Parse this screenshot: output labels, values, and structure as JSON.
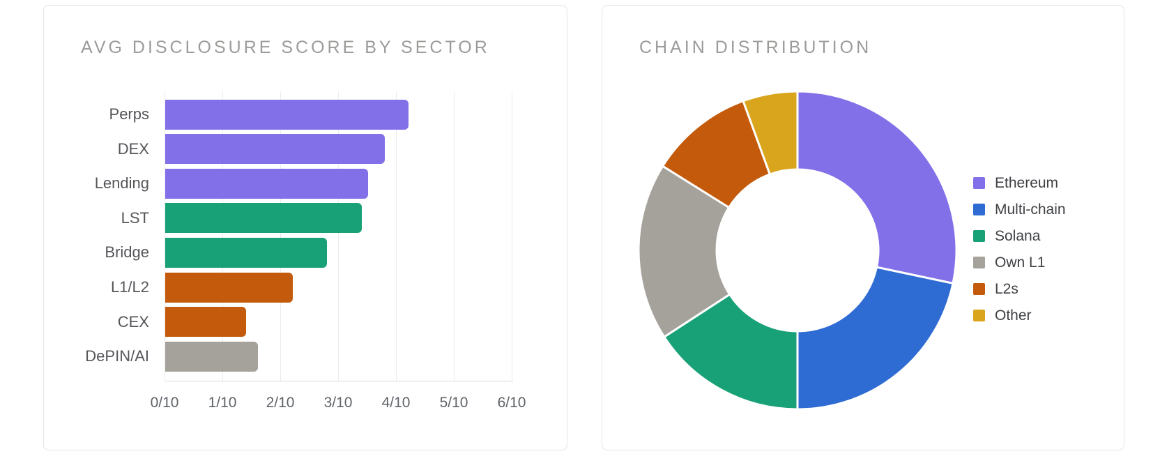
{
  "cards": [
    {
      "title": "AVG DISCLOSURE SCORE BY SECTOR"
    },
    {
      "title": "CHAIN DISTRIBUTION"
    }
  ],
  "colors": {
    "purple": "#8170e8",
    "blue": "#2e6bd3",
    "green": "#18a176",
    "gray": "#a5a19b",
    "orange": "#c45a0b",
    "gold": "#d9a51d",
    "card_border": "#e5e5e8",
    "grid": "#ececef",
    "axis": "#d9d9dc",
    "title_text": "#9b9b99",
    "category_text": "#55565a",
    "tick_text": "#5f6368",
    "legend_text": "#3e4044"
  },
  "chart_data": [
    {
      "type": "bar",
      "orientation": "horizontal",
      "title": "AVG DISCLOSURE SCORE BY SECTOR",
      "categories": [
        "Perps",
        "DEX",
        "Lending",
        "LST",
        "Bridge",
        "L1/L2",
        "CEX",
        "DePIN/AI"
      ],
      "values": [
        4.2,
        3.8,
        3.5,
        3.4,
        2.8,
        2.2,
        1.4,
        1.6
      ],
      "bar_colors": [
        "#8170e8",
        "#8170e8",
        "#8170e8",
        "#18a176",
        "#18a176",
        "#c45a0b",
        "#c45a0b",
        "#a5a19b"
      ],
      "xlabel": "",
      "ylabel": "",
      "xlim": [
        0,
        6
      ],
      "x_tick_values": [
        0,
        1,
        2,
        3,
        4,
        5,
        6
      ],
      "x_tick_labels": [
        "0/10",
        "1/10",
        "2/10",
        "3/10",
        "4/10",
        "5/10",
        "6/10"
      ],
      "grid": true,
      "legend_position": "none"
    },
    {
      "type": "donut",
      "title": "CHAIN DISTRIBUTION",
      "labels": [
        "Ethereum",
        "Multi-chain",
        "Solana",
        "Own L1",
        "L2s",
        "Other"
      ],
      "values_pct": [
        28.3,
        21.7,
        15.8,
        18.1,
        10.6,
        5.6
      ],
      "values_deg": [
        102,
        78,
        57,
        65,
        38,
        20
      ],
      "colors": [
        "#8170e8",
        "#2e6bd3",
        "#18a176",
        "#a5a19b",
        "#c45a0b",
        "#d9a51d"
      ],
      "start_angle_deg": 0,
      "direction": "clockwise",
      "inner_radius_ratio": 0.51,
      "separator_color": "#ffffff",
      "legend_position": "right",
      "grid": false
    }
  ]
}
